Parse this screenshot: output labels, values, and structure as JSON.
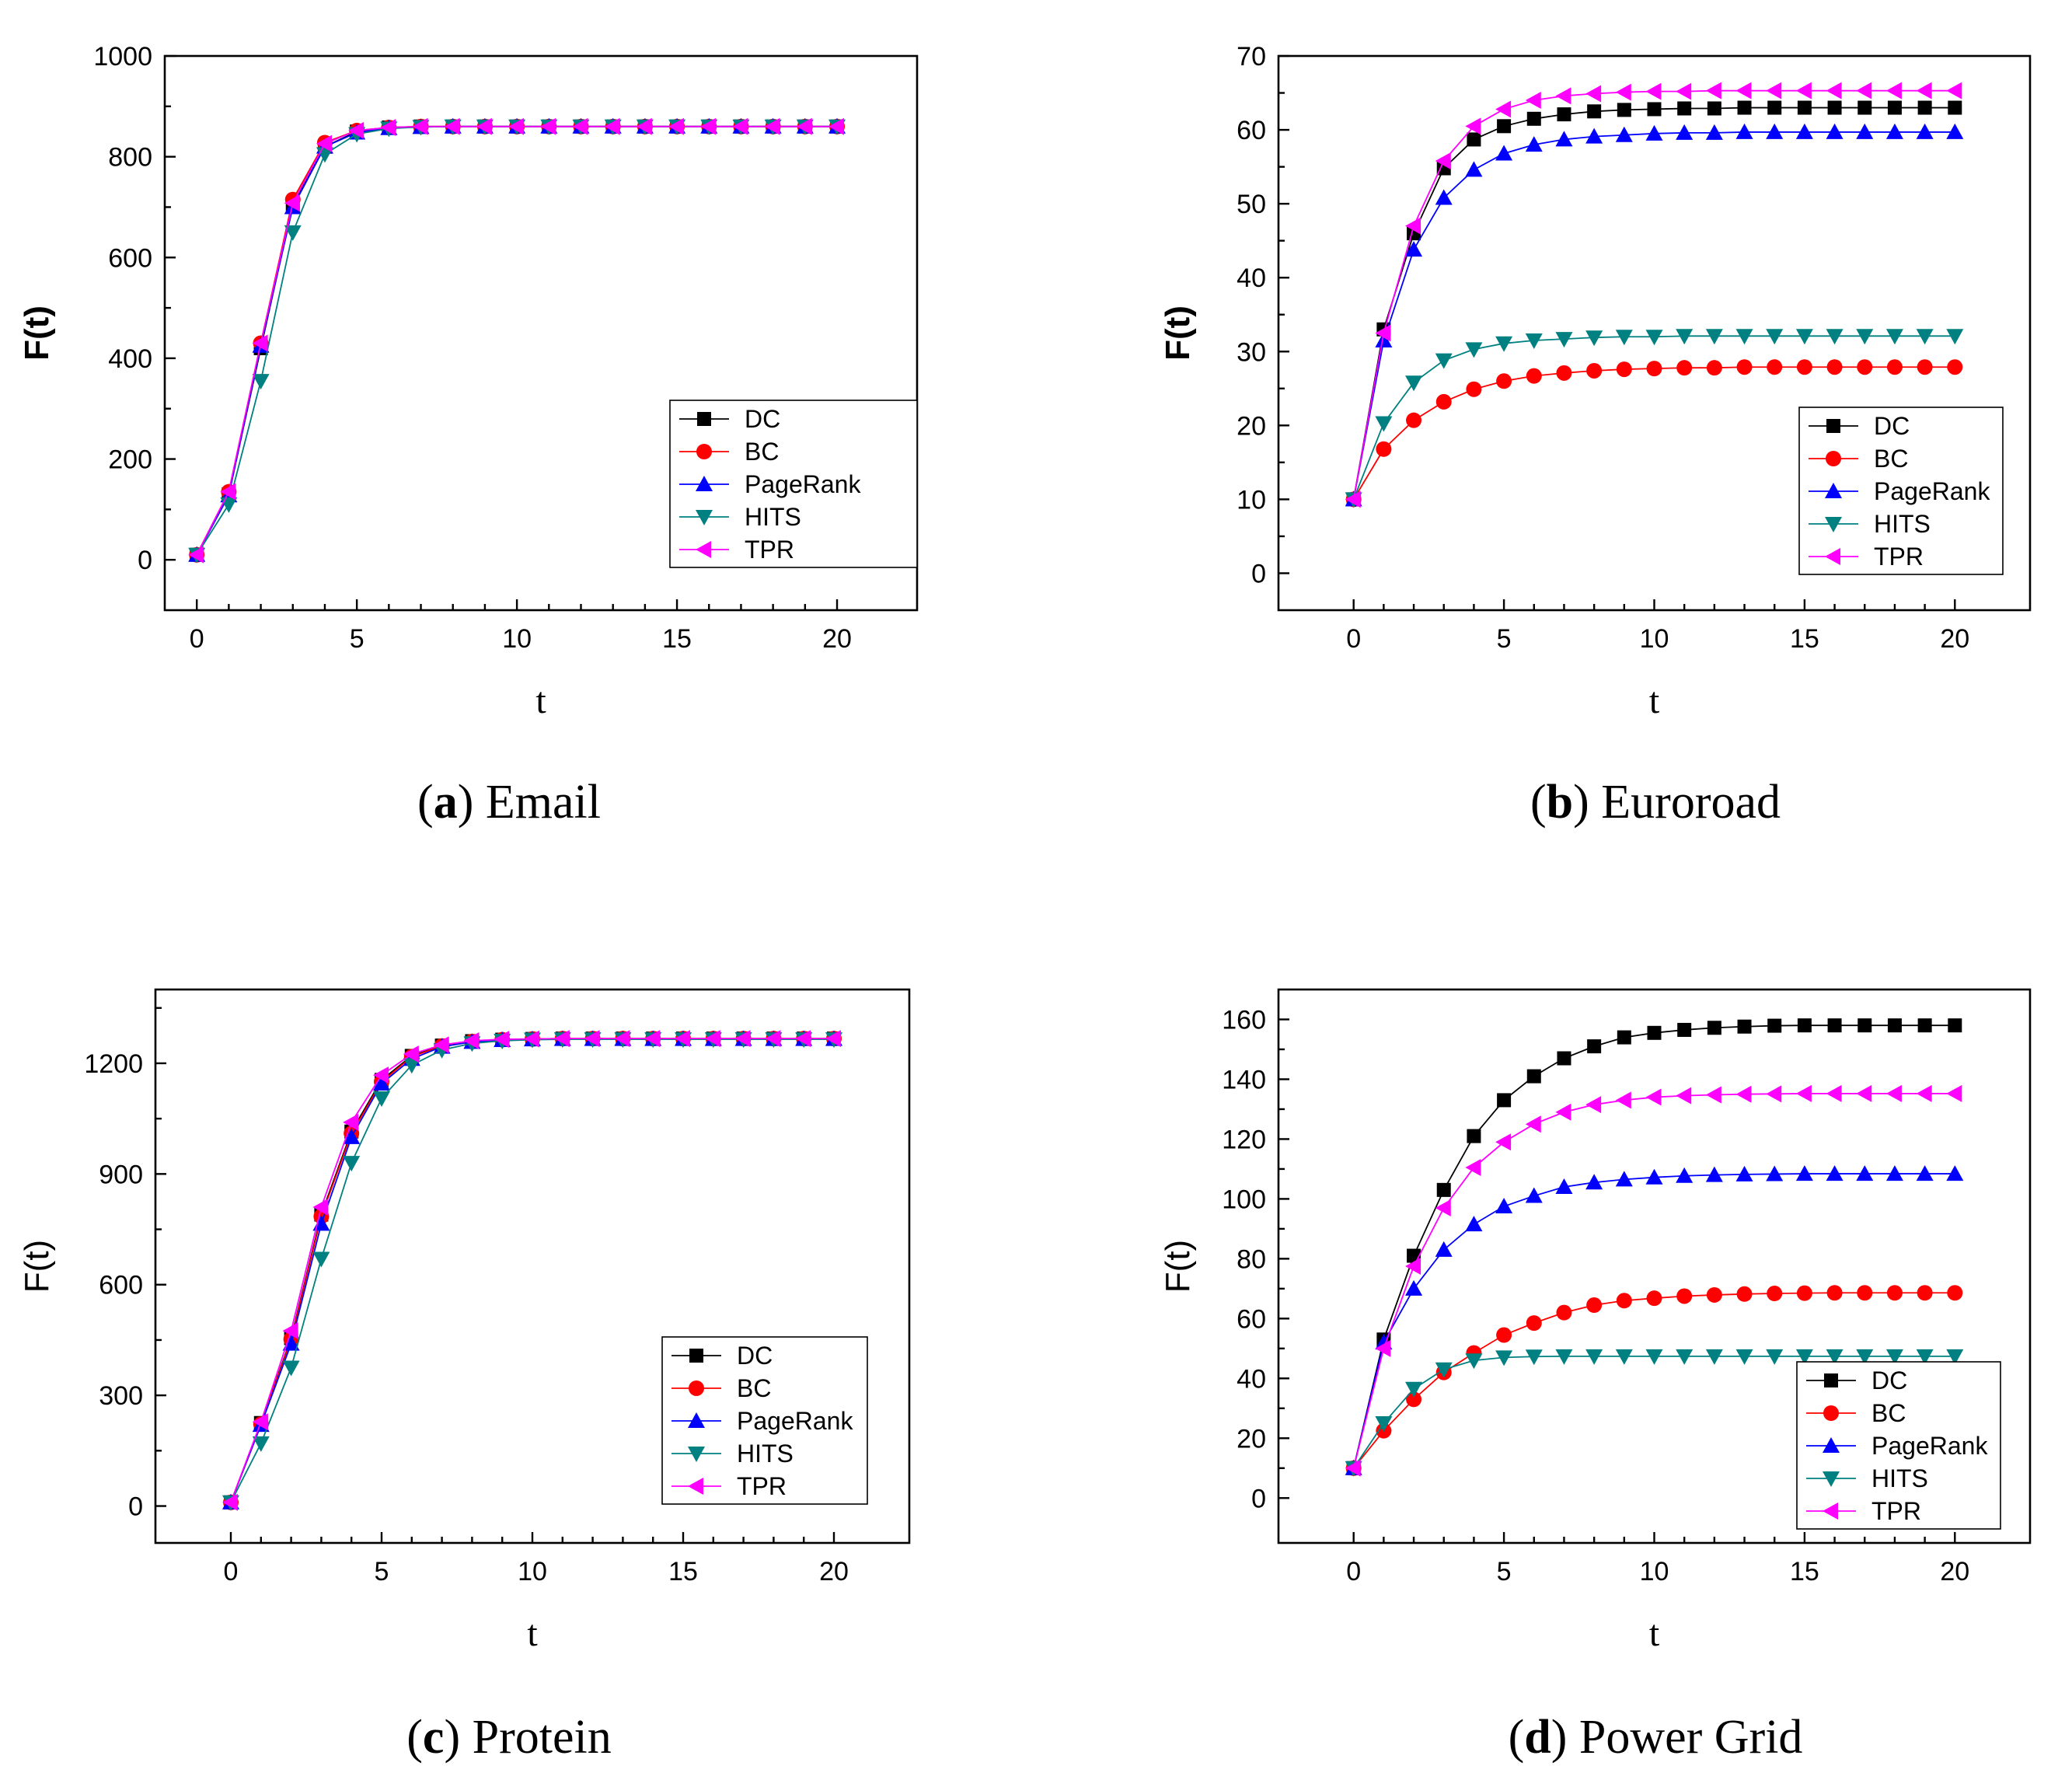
{
  "chart_data": [
    {
      "type": "line",
      "caption_letter": "a",
      "caption_name": "Email",
      "xlabel": "t",
      "ylabel": "F(t)",
      "ylabel_bold": true,
      "xlim": [
        -1,
        22.5
      ],
      "ylim": [
        -100,
        1000
      ],
      "xticks": [
        0,
        5,
        10,
        15,
        20
      ],
      "yticks": [
        0,
        200,
        400,
        600,
        800,
        1000
      ],
      "legend": "lower-right",
      "x": [
        0,
        1,
        2,
        3,
        4,
        5,
        6,
        7,
        8,
        9,
        10,
        11,
        12,
        13,
        14,
        15,
        16,
        17,
        18,
        19,
        20
      ],
      "series": [
        {
          "name": "DC",
          "color": "#000000",
          "marker": "square",
          "values": [
            10,
            130,
            420,
            705,
            820,
            850,
            858,
            860,
            860,
            860,
            860,
            860,
            860,
            860,
            860,
            860,
            860,
            860,
            860,
            860,
            860
          ]
        },
        {
          "name": "BC",
          "color": "#ff0000",
          "marker": "circle",
          "values": [
            10,
            135,
            430,
            715,
            828,
            852,
            858,
            860,
            860,
            860,
            860,
            860,
            860,
            860,
            860,
            860,
            860,
            860,
            860,
            860,
            860
          ]
        },
        {
          "name": "PageRank",
          "color": "#0000ff",
          "marker": "triangle-up",
          "values": [
            10,
            128,
            425,
            700,
            820,
            848,
            857,
            859,
            860,
            860,
            860,
            860,
            860,
            860,
            860,
            860,
            860,
            860,
            860,
            860,
            860
          ]
        },
        {
          "name": "HITS",
          "color": "#008080",
          "marker": "triangle-down",
          "values": [
            10,
            110,
            355,
            650,
            805,
            845,
            856,
            859,
            860,
            860,
            860,
            860,
            860,
            860,
            860,
            860,
            860,
            860,
            860,
            860,
            860
          ]
        },
        {
          "name": "TPR",
          "color": "#ff00ff",
          "marker": "triangle-left",
          "values": [
            10,
            135,
            430,
            708,
            826,
            852,
            858,
            860,
            860,
            860,
            860,
            860,
            860,
            860,
            860,
            860,
            860,
            860,
            860,
            860,
            860
          ]
        }
      ]
    },
    {
      "type": "line",
      "caption_letter": "b",
      "caption_name": "Euroroad",
      "xlabel": "t",
      "ylabel": "F(t)",
      "ylabel_bold": true,
      "xlim": [
        -2.5,
        22.5
      ],
      "ylim": [
        -5,
        70
      ],
      "xticks": [
        0,
        5,
        10,
        15,
        20
      ],
      "yticks": [
        0,
        10,
        20,
        30,
        40,
        50,
        60,
        70
      ],
      "legend": "lower-right",
      "x": [
        0,
        1,
        2,
        3,
        4,
        5,
        6,
        7,
        8,
        9,
        10,
        11,
        12,
        13,
        14,
        15,
        16,
        17,
        18,
        19,
        20
      ],
      "series": [
        {
          "name": "DC",
          "color": "#000000",
          "marker": "square",
          "values": [
            10,
            33,
            46,
            54.8,
            58.7,
            60.5,
            61.5,
            62.1,
            62.5,
            62.7,
            62.8,
            62.9,
            62.9,
            63,
            63,
            63,
            63,
            63,
            63,
            63,
            63
          ]
        },
        {
          "name": "BC",
          "color": "#ff0000",
          "marker": "circle",
          "values": [
            10,
            16.8,
            20.7,
            23.2,
            24.9,
            26,
            26.7,
            27.1,
            27.4,
            27.6,
            27.7,
            27.8,
            27.8,
            27.9,
            27.9,
            27.9,
            27.9,
            27.9,
            27.9,
            27.9,
            27.9
          ]
        },
        {
          "name": "PageRank",
          "color": "#0000ff",
          "marker": "triangle-up",
          "values": [
            10,
            31.5,
            43.8,
            50.8,
            54.6,
            56.8,
            58,
            58.7,
            59.1,
            59.3,
            59.5,
            59.6,
            59.6,
            59.7,
            59.7,
            59.7,
            59.7,
            59.7,
            59.7,
            59.7,
            59.7
          ]
        },
        {
          "name": "HITS",
          "color": "#008080",
          "marker": "triangle-down",
          "values": [
            10,
            20.3,
            25.8,
            28.8,
            30.3,
            31.1,
            31.5,
            31.7,
            31.9,
            32,
            32,
            32.1,
            32.1,
            32.1,
            32.1,
            32.1,
            32.1,
            32.1,
            32.1,
            32.1,
            32.1
          ]
        },
        {
          "name": "TPR",
          "color": "#ff00ff",
          "marker": "triangle-left",
          "values": [
            10,
            32.5,
            47,
            55.8,
            60.5,
            62.8,
            64,
            64.6,
            64.9,
            65.1,
            65.2,
            65.2,
            65.3,
            65.3,
            65.3,
            65.3,
            65.3,
            65.3,
            65.3,
            65.3,
            65.3
          ]
        }
      ]
    },
    {
      "type": "line",
      "caption_letter": "c",
      "caption_name": "Protein",
      "xlabel": "t",
      "ylabel": "F(t)",
      "ylabel_bold": false,
      "xlim": [
        -2.5,
        22.5
      ],
      "ylim": [
        -100,
        1400
      ],
      "xticks": [
        0,
        5,
        10,
        15,
        20
      ],
      "yticks": [
        0,
        300,
        600,
        900,
        1200
      ],
      "legend": "lower-right",
      "x": [
        0,
        1,
        2,
        3,
        4,
        5,
        6,
        7,
        8,
        9,
        10,
        11,
        12,
        13,
        14,
        15,
        16,
        17,
        18,
        19,
        20
      ],
      "series": [
        {
          "name": "DC",
          "color": "#000000",
          "marker": "square",
          "values": [
            10,
            225,
            455,
            790,
            1015,
            1155,
            1220,
            1248,
            1260,
            1264,
            1266,
            1267,
            1267,
            1267,
            1267,
            1267,
            1267,
            1267,
            1267,
            1267,
            1267
          ]
        },
        {
          "name": "BC",
          "color": "#ff0000",
          "marker": "circle",
          "values": [
            10,
            222,
            452,
            785,
            1010,
            1150,
            1218,
            1247,
            1259,
            1264,
            1266,
            1267,
            1267,
            1267,
            1267,
            1267,
            1267,
            1267,
            1267,
            1267,
            1267
          ]
        },
        {
          "name": "PageRank",
          "color": "#0000ff",
          "marker": "triangle-up",
          "values": [
            10,
            220,
            440,
            765,
            1000,
            1145,
            1212,
            1245,
            1258,
            1263,
            1265,
            1266,
            1266,
            1266,
            1266,
            1266,
            1266,
            1266,
            1266,
            1266,
            1266
          ]
        },
        {
          "name": "HITS",
          "color": "#008080",
          "marker": "triangle-down",
          "values": [
            10,
            170,
            375,
            670,
            930,
            1105,
            1195,
            1236,
            1254,
            1261,
            1264,
            1265,
            1265,
            1265,
            1265,
            1265,
            1265,
            1265,
            1265,
            1265,
            1265
          ]
        },
        {
          "name": "TPR",
          "color": "#ff00ff",
          "marker": "triangle-left",
          "values": [
            10,
            228,
            475,
            810,
            1040,
            1168,
            1225,
            1250,
            1261,
            1265,
            1266,
            1267,
            1267,
            1267,
            1267,
            1267,
            1267,
            1267,
            1267,
            1267,
            1267
          ]
        }
      ]
    },
    {
      "type": "line",
      "caption_letter": "d",
      "caption_name": "Power Grid",
      "xlabel": "t",
      "ylabel": "F(t)",
      "ylabel_bold": false,
      "xlim": [
        -2.5,
        22.5
      ],
      "ylim": [
        -15,
        170
      ],
      "xticks": [
        0,
        5,
        10,
        15,
        20
      ],
      "yticks": [
        0,
        20,
        40,
        60,
        80,
        100,
        120,
        140,
        160
      ],
      "legend": "lower-right",
      "x": [
        0,
        1,
        2,
        3,
        4,
        5,
        6,
        7,
        8,
        9,
        10,
        11,
        12,
        13,
        14,
        15,
        16,
        17,
        18,
        19,
        20
      ],
      "series": [
        {
          "name": "DC",
          "color": "#000000",
          "marker": "square",
          "values": [
            10,
            53,
            81,
            103,
            121,
            133,
            141,
            147,
            151,
            154,
            155.5,
            156.5,
            157.2,
            157.6,
            157.9,
            158,
            158,
            158,
            158,
            158,
            158
          ]
        },
        {
          "name": "BC",
          "color": "#ff0000",
          "marker": "circle",
          "values": [
            10,
            22.5,
            33,
            42,
            48.5,
            54.5,
            58.5,
            62,
            64.5,
            66,
            66.8,
            67.5,
            67.9,
            68.2,
            68.4,
            68.5,
            68.6,
            68.6,
            68.6,
            68.6,
            68.6
          ]
        },
        {
          "name": "PageRank",
          "color": "#0000ff",
          "marker": "triangle-up",
          "values": [
            10,
            52,
            70,
            83,
            91.5,
            97.5,
            101,
            104,
            105.5,
            106.5,
            107.2,
            107.7,
            108,
            108.2,
            108.3,
            108.4,
            108.4,
            108.4,
            108.4,
            108.4,
            108.4
          ]
        },
        {
          "name": "HITS",
          "color": "#008080",
          "marker": "triangle-down",
          "values": [
            10,
            25,
            36.5,
            43,
            46,
            47,
            47.3,
            47.4,
            47.4,
            47.4,
            47.4,
            47.4,
            47.4,
            47.4,
            47.4,
            47.4,
            47.4,
            47.4,
            47.4,
            47.4,
            47.4
          ]
        },
        {
          "name": "TPR",
          "color": "#ff00ff",
          "marker": "triangle-left",
          "values": [
            10,
            50,
            77.5,
            97,
            110.5,
            119,
            125,
            129,
            131.5,
            133,
            134,
            134.5,
            134.8,
            135,
            135.1,
            135.2,
            135.2,
            135.2,
            135.2,
            135.2,
            135.2
          ]
        }
      ]
    }
  ]
}
